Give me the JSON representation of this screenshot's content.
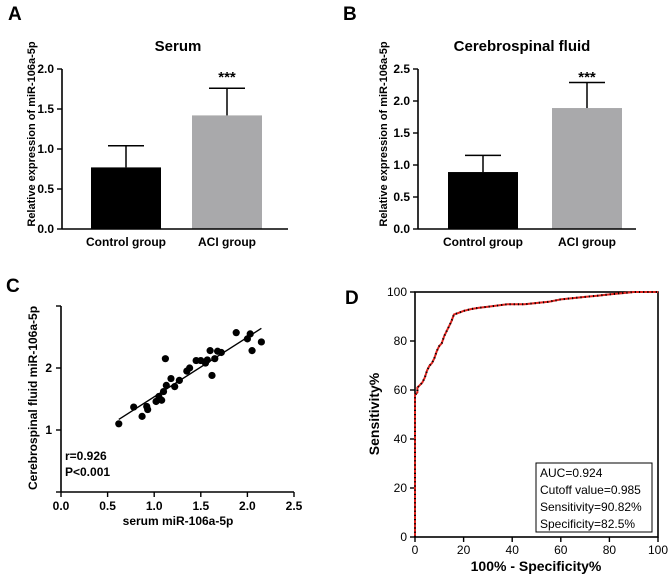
{
  "panels": {
    "a": "A",
    "b": "B",
    "c": "C",
    "d": "D"
  },
  "chart_data": [
    {
      "panel": "A",
      "type": "bar",
      "title": "Serum",
      "ylabel": "Relative expression of miR-106a-5p",
      "categories": [
        "Control group",
        "ACI group"
      ],
      "values": [
        0.77,
        1.42
      ],
      "errors": [
        0.27,
        0.34
      ],
      "colors": [
        "#000000",
        "#a9a9ab"
      ],
      "significance": [
        "",
        "***"
      ],
      "ylim": [
        0,
        2.0
      ],
      "yticks": [
        "0.0",
        "0.5",
        "1.0",
        "1.5",
        "2.0"
      ]
    },
    {
      "panel": "B",
      "type": "bar",
      "title": "Cerebrospinal fluid",
      "ylabel": "Relative expression of miR-106a-5p",
      "categories": [
        "Control group",
        "ACI group"
      ],
      "values": [
        0.89,
        1.89
      ],
      "errors": [
        0.26,
        0.4
      ],
      "colors": [
        "#000000",
        "#a9a9ab"
      ],
      "significance": [
        "",
        "***"
      ],
      "ylim": [
        0,
        2.5
      ],
      "yticks": [
        "0.0",
        "0.5",
        "1.0",
        "1.5",
        "2.0",
        "2.5"
      ]
    },
    {
      "panel": "C",
      "type": "scatter",
      "xlabel": "serum miR-106a-5p",
      "ylabel": "Cerebrospinal fluid miR-106a-5p",
      "xlim": [
        0,
        2.5
      ],
      "ylim": [
        0,
        3
      ],
      "xticks": [
        "0.0",
        "0.5",
        "1.0",
        "1.5",
        "2.0",
        "2.5"
      ],
      "yticks": [
        "1",
        "2"
      ],
      "annotation_r": "r=0.926",
      "annotation_p": "P<0.001",
      "points": [
        [
          0.62,
          1.1
        ],
        [
          0.78,
          1.37
        ],
        [
          0.87,
          1.22
        ],
        [
          0.92,
          1.38
        ],
        [
          0.93,
          1.33
        ],
        [
          1.02,
          1.46
        ],
        [
          1.05,
          1.54
        ],
        [
          1.08,
          1.48
        ],
        [
          1.1,
          1.62
        ],
        [
          1.12,
          2.15
        ],
        [
          1.13,
          1.72
        ],
        [
          1.18,
          1.83
        ],
        [
          1.22,
          1.7
        ],
        [
          1.27,
          1.8
        ],
        [
          1.35,
          1.95
        ],
        [
          1.38,
          2.0
        ],
        [
          1.45,
          2.12
        ],
        [
          1.5,
          2.12
        ],
        [
          1.55,
          2.08
        ],
        [
          1.57,
          2.13
        ],
        [
          1.6,
          2.28
        ],
        [
          1.62,
          1.88
        ],
        [
          1.65,
          2.15
        ],
        [
          1.68,
          2.27
        ],
        [
          1.72,
          2.25
        ],
        [
          1.88,
          2.57
        ],
        [
          2.0,
          2.47
        ],
        [
          2.03,
          2.55
        ],
        [
          2.05,
          2.28
        ],
        [
          2.15,
          2.42
        ]
      ],
      "fit_line": [
        [
          0.62,
          1.17
        ],
        [
          2.15,
          2.64
        ]
      ]
    },
    {
      "panel": "D",
      "type": "line",
      "xlabel": "100% - Specificity%",
      "ylabel": "Sensitivity%",
      "xlim": [
        0,
        100
      ],
      "ylim": [
        0,
        100
      ],
      "xticks": [
        "0",
        "20",
        "40",
        "60",
        "80",
        "100"
      ],
      "yticks": [
        "0",
        "20",
        "40",
        "60",
        "80",
        "100"
      ],
      "legend": [
        "AUC=0.924",
        "Cutoff value=0.985",
        "Sensitivity=90.82%",
        "Specificity=82.5%"
      ],
      "roc_points": [
        [
          0,
          0
        ],
        [
          0,
          12
        ],
        [
          0,
          25
        ],
        [
          0,
          37
        ],
        [
          0,
          50
        ],
        [
          0,
          58
        ],
        [
          1,
          59
        ],
        [
          1,
          61
        ],
        [
          2,
          62
        ],
        [
          3,
          63
        ],
        [
          4,
          65
        ],
        [
          5,
          68
        ],
        [
          6,
          70
        ],
        [
          7,
          71
        ],
        [
          8,
          73
        ],
        [
          9,
          76
        ],
        [
          10,
          78
        ],
        [
          11,
          79
        ],
        [
          12,
          82
        ],
        [
          13,
          84
        ],
        [
          14,
          86
        ],
        [
          15,
          88
        ],
        [
          16,
          90.8
        ],
        [
          18,
          91.5
        ],
        [
          20,
          92.3
        ],
        [
          23,
          93
        ],
        [
          26,
          93.5
        ],
        [
          30,
          94
        ],
        [
          34,
          94.5
        ],
        [
          38,
          95
        ],
        [
          45,
          95
        ],
        [
          50,
          95.5
        ],
        [
          55,
          96
        ],
        [
          60,
          97
        ],
        [
          65,
          97.5
        ],
        [
          70,
          98
        ],
        [
          75,
          98.5
        ],
        [
          80,
          99
        ],
        [
          85,
          99.5
        ],
        [
          90,
          100
        ],
        [
          95,
          100
        ],
        [
          100,
          100
        ]
      ]
    }
  ]
}
